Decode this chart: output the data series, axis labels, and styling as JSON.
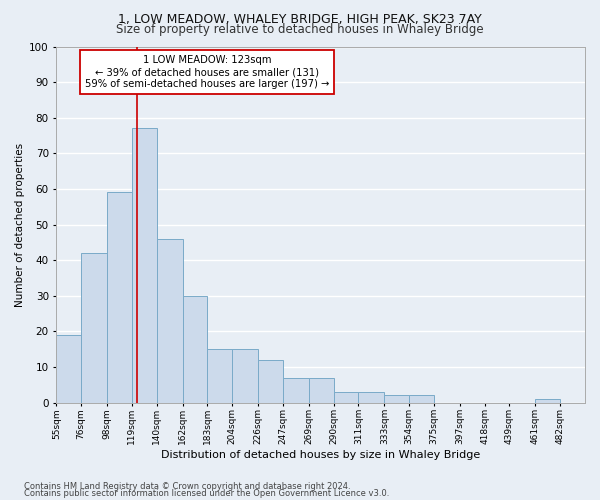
{
  "title": "1, LOW MEADOW, WHALEY BRIDGE, HIGH PEAK, SK23 7AY",
  "subtitle": "Size of property relative to detached houses in Whaley Bridge",
  "xlabel": "Distribution of detached houses by size in Whaley Bridge",
  "ylabel": "Number of detached properties",
  "footnote1": "Contains HM Land Registry data © Crown copyright and database right 2024.",
  "footnote2": "Contains public sector information licensed under the Open Government Licence v3.0.",
  "bin_labels": [
    "55sqm",
    "76sqm",
    "98sqm",
    "119sqm",
    "140sqm",
    "162sqm",
    "183sqm",
    "204sqm",
    "226sqm",
    "247sqm",
    "269sqm",
    "290sqm",
    "311sqm",
    "333sqm",
    "354sqm",
    "375sqm",
    "397sqm",
    "418sqm",
    "439sqm",
    "461sqm",
    "482sqm"
  ],
  "bar_values": [
    19,
    42,
    59,
    77,
    46,
    30,
    15,
    15,
    12,
    7,
    7,
    3,
    3,
    2,
    2,
    0,
    0,
    0,
    0,
    1,
    0
  ],
  "bar_color": "#ccdaeb",
  "bar_edge_color": "#7aaac8",
  "property_size": 123,
  "property_label": "1 LOW MEADOW: 123sqm",
  "annotation_line1": "← 39% of detached houses are smaller (131)",
  "annotation_line2": "59% of semi-detached houses are larger (197) →",
  "vline_color": "#cc0000",
  "annotation_box_color": "#ffffff",
  "annotation_box_edge": "#cc0000",
  "bin_edges": [
    55,
    76,
    98,
    119,
    140,
    162,
    183,
    204,
    226,
    247,
    269,
    290,
    311,
    333,
    354,
    375,
    397,
    418,
    439,
    461,
    482,
    503
  ],
  "ylim": [
    0,
    100
  ],
  "yticks": [
    0,
    10,
    20,
    30,
    40,
    50,
    60,
    70,
    80,
    90,
    100
  ],
  "bg_color": "#e8eef5",
  "grid_color": "#ffffff",
  "title_fontsize": 9,
  "subtitle_fontsize": 8.5
}
